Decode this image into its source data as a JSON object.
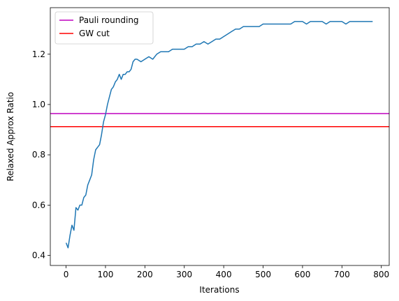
{
  "chart_data": {
    "type": "line",
    "xlabel": "Iterations",
    "ylabel": "Relaxed Approx Ratio",
    "xlim": [
      -40,
      820
    ],
    "ylim": [
      0.36,
      1.385
    ],
    "xticks": [
      0,
      100,
      200,
      300,
      400,
      500,
      600,
      700,
      800
    ],
    "yticks": [
      0.4,
      0.6,
      0.8,
      1.0,
      1.2
    ],
    "xtick_labels": [
      "0",
      "100",
      "200",
      "300",
      "400",
      "500",
      "600",
      "700",
      "800"
    ],
    "ytick_labels": [
      "0.4",
      "0.6",
      "0.8",
      "1.0",
      "1.2"
    ],
    "grid": false,
    "legend_position": "top-left",
    "legend": [
      "Pauli rounding",
      "GW cut"
    ],
    "hlines": [
      {
        "name": "Pauli rounding",
        "y": 0.964,
        "color": "#bf00bf"
      },
      {
        "name": "GW cut",
        "y": 0.912,
        "color": "#ff0000"
      }
    ],
    "series": [
      {
        "color": "#1f77b4",
        "x": [
          0,
          5,
          10,
          15,
          20,
          25,
          30,
          35,
          40,
          45,
          50,
          55,
          60,
          65,
          70,
          75,
          80,
          85,
          90,
          95,
          100,
          105,
          110,
          115,
          120,
          125,
          130,
          135,
          140,
          145,
          150,
          155,
          160,
          165,
          170,
          175,
          180,
          190,
          200,
          210,
          220,
          230,
          240,
          250,
          260,
          270,
          280,
          290,
          300,
          310,
          320,
          330,
          340,
          350,
          360,
          370,
          380,
          390,
          400,
          410,
          420,
          430,
          440,
          450,
          460,
          470,
          480,
          490,
          500,
          510,
          520,
          530,
          540,
          550,
          560,
          570,
          580,
          590,
          600,
          610,
          620,
          630,
          640,
          650,
          660,
          670,
          680,
          690,
          700,
          710,
          720,
          730,
          740,
          750,
          760,
          770,
          778
        ],
        "y": [
          0.45,
          0.43,
          0.48,
          0.52,
          0.5,
          0.59,
          0.58,
          0.6,
          0.6,
          0.63,
          0.64,
          0.68,
          0.7,
          0.72,
          0.78,
          0.82,
          0.83,
          0.84,
          0.88,
          0.93,
          0.96,
          1.0,
          1.03,
          1.06,
          1.07,
          1.09,
          1.1,
          1.12,
          1.1,
          1.12,
          1.12,
          1.13,
          1.13,
          1.14,
          1.17,
          1.18,
          1.18,
          1.17,
          1.18,
          1.19,
          1.18,
          1.2,
          1.21,
          1.21,
          1.21,
          1.22,
          1.22,
          1.22,
          1.22,
          1.23,
          1.23,
          1.24,
          1.24,
          1.25,
          1.24,
          1.25,
          1.26,
          1.26,
          1.27,
          1.28,
          1.29,
          1.3,
          1.3,
          1.31,
          1.31,
          1.31,
          1.31,
          1.31,
          1.32,
          1.32,
          1.32,
          1.32,
          1.32,
          1.32,
          1.32,
          1.32,
          1.33,
          1.33,
          1.33,
          1.32,
          1.33,
          1.33,
          1.33,
          1.33,
          1.32,
          1.33,
          1.33,
          1.33,
          1.33,
          1.32,
          1.33,
          1.33,
          1.33,
          1.33,
          1.33,
          1.33,
          1.33
        ]
      }
    ]
  }
}
